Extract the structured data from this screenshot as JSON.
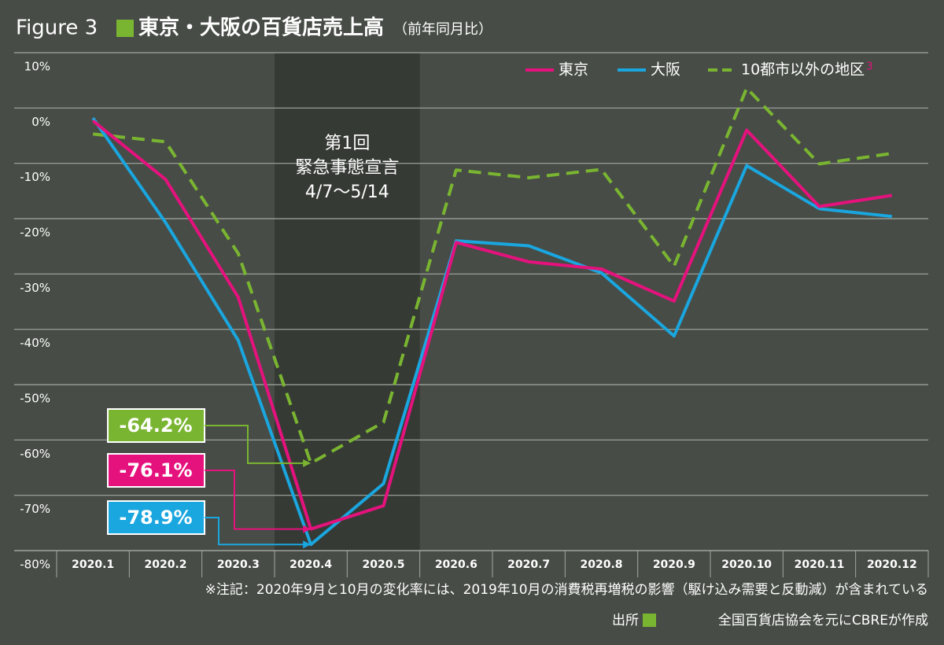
{
  "chart_data": {
    "type": "line",
    "figure_label": "Figure 3",
    "title": "東京・大阪の百貨店売上高",
    "subtitle": "（前年同月比）",
    "categories": [
      "2020.1",
      "2020.2",
      "2020.3",
      "2020.4",
      "2020.5",
      "2020.6",
      "2020.7",
      "2020.8",
      "2020.9",
      "2020.10",
      "2020.11",
      "2020.12"
    ],
    "series": [
      {
        "name": "東京",
        "color": "#e5127d",
        "dash": false,
        "values": [
          -2.3,
          -12.9,
          -34.2,
          -76.1,
          -71.9,
          -24.3,
          -27.8,
          -29.1,
          -34.9,
          -4.0,
          -17.8,
          -15.8
        ],
        "value_labels": [
          null,
          null,
          null,
          "-76.1%",
          null,
          null,
          null,
          null,
          null,
          null,
          null,
          null
        ]
      },
      {
        "name": "大阪",
        "color": "#1aa6df",
        "dash": false,
        "values": [
          -1.8,
          -20.7,
          -42.0,
          -78.9,
          -67.9,
          -24.0,
          -24.9,
          -29.8,
          -41.2,
          -10.4,
          -18.2,
          -19.6
        ],
        "value_labels": [
          null,
          null,
          null,
          "-78.9%",
          null,
          null,
          null,
          null,
          null,
          null,
          null,
          null
        ]
      },
      {
        "name": "10都市以外の地区",
        "name_note": "3",
        "color": "#7ab531",
        "dash": true,
        "values": [
          -4.7,
          -6.1,
          -26.3,
          -64.2,
          -56.8,
          -11.2,
          -12.6,
          -11.1,
          -28.6,
          3.6,
          -10.1,
          -8.2
        ],
        "value_labels": [
          null,
          null,
          null,
          "-64.2%",
          null,
          null,
          null,
          null,
          null,
          null,
          null,
          null
        ]
      }
    ],
    "ylim": [
      -80,
      10
    ],
    "yticks": [
      {
        "value": 10,
        "label": "10%"
      },
      {
        "value": 0,
        "label": "0%"
      },
      {
        "value": -10,
        "label": "-10%"
      },
      {
        "value": -20,
        "label": "-20%"
      },
      {
        "value": -30,
        "label": "-30%"
      },
      {
        "value": -40,
        "label": "-40%"
      },
      {
        "value": -50,
        "label": "-50%"
      },
      {
        "value": -60,
        "label": "-60%"
      },
      {
        "value": -70,
        "label": "-70%"
      },
      {
        "value": -80,
        "label": "-80%"
      }
    ],
    "grid": true,
    "legend": "top-right",
    "annotation": [
      "第1回",
      "緊急事態宣言",
      "4/7〜5/14"
    ],
    "note": "※注記：2020年9月と10月の変化率には、2019年10月の消費税再増税の影響（駆け込み需要と反動減）が含まれている",
    "source_label": "出所",
    "source": "全国百貨店協会を元にCBREが作成"
  }
}
